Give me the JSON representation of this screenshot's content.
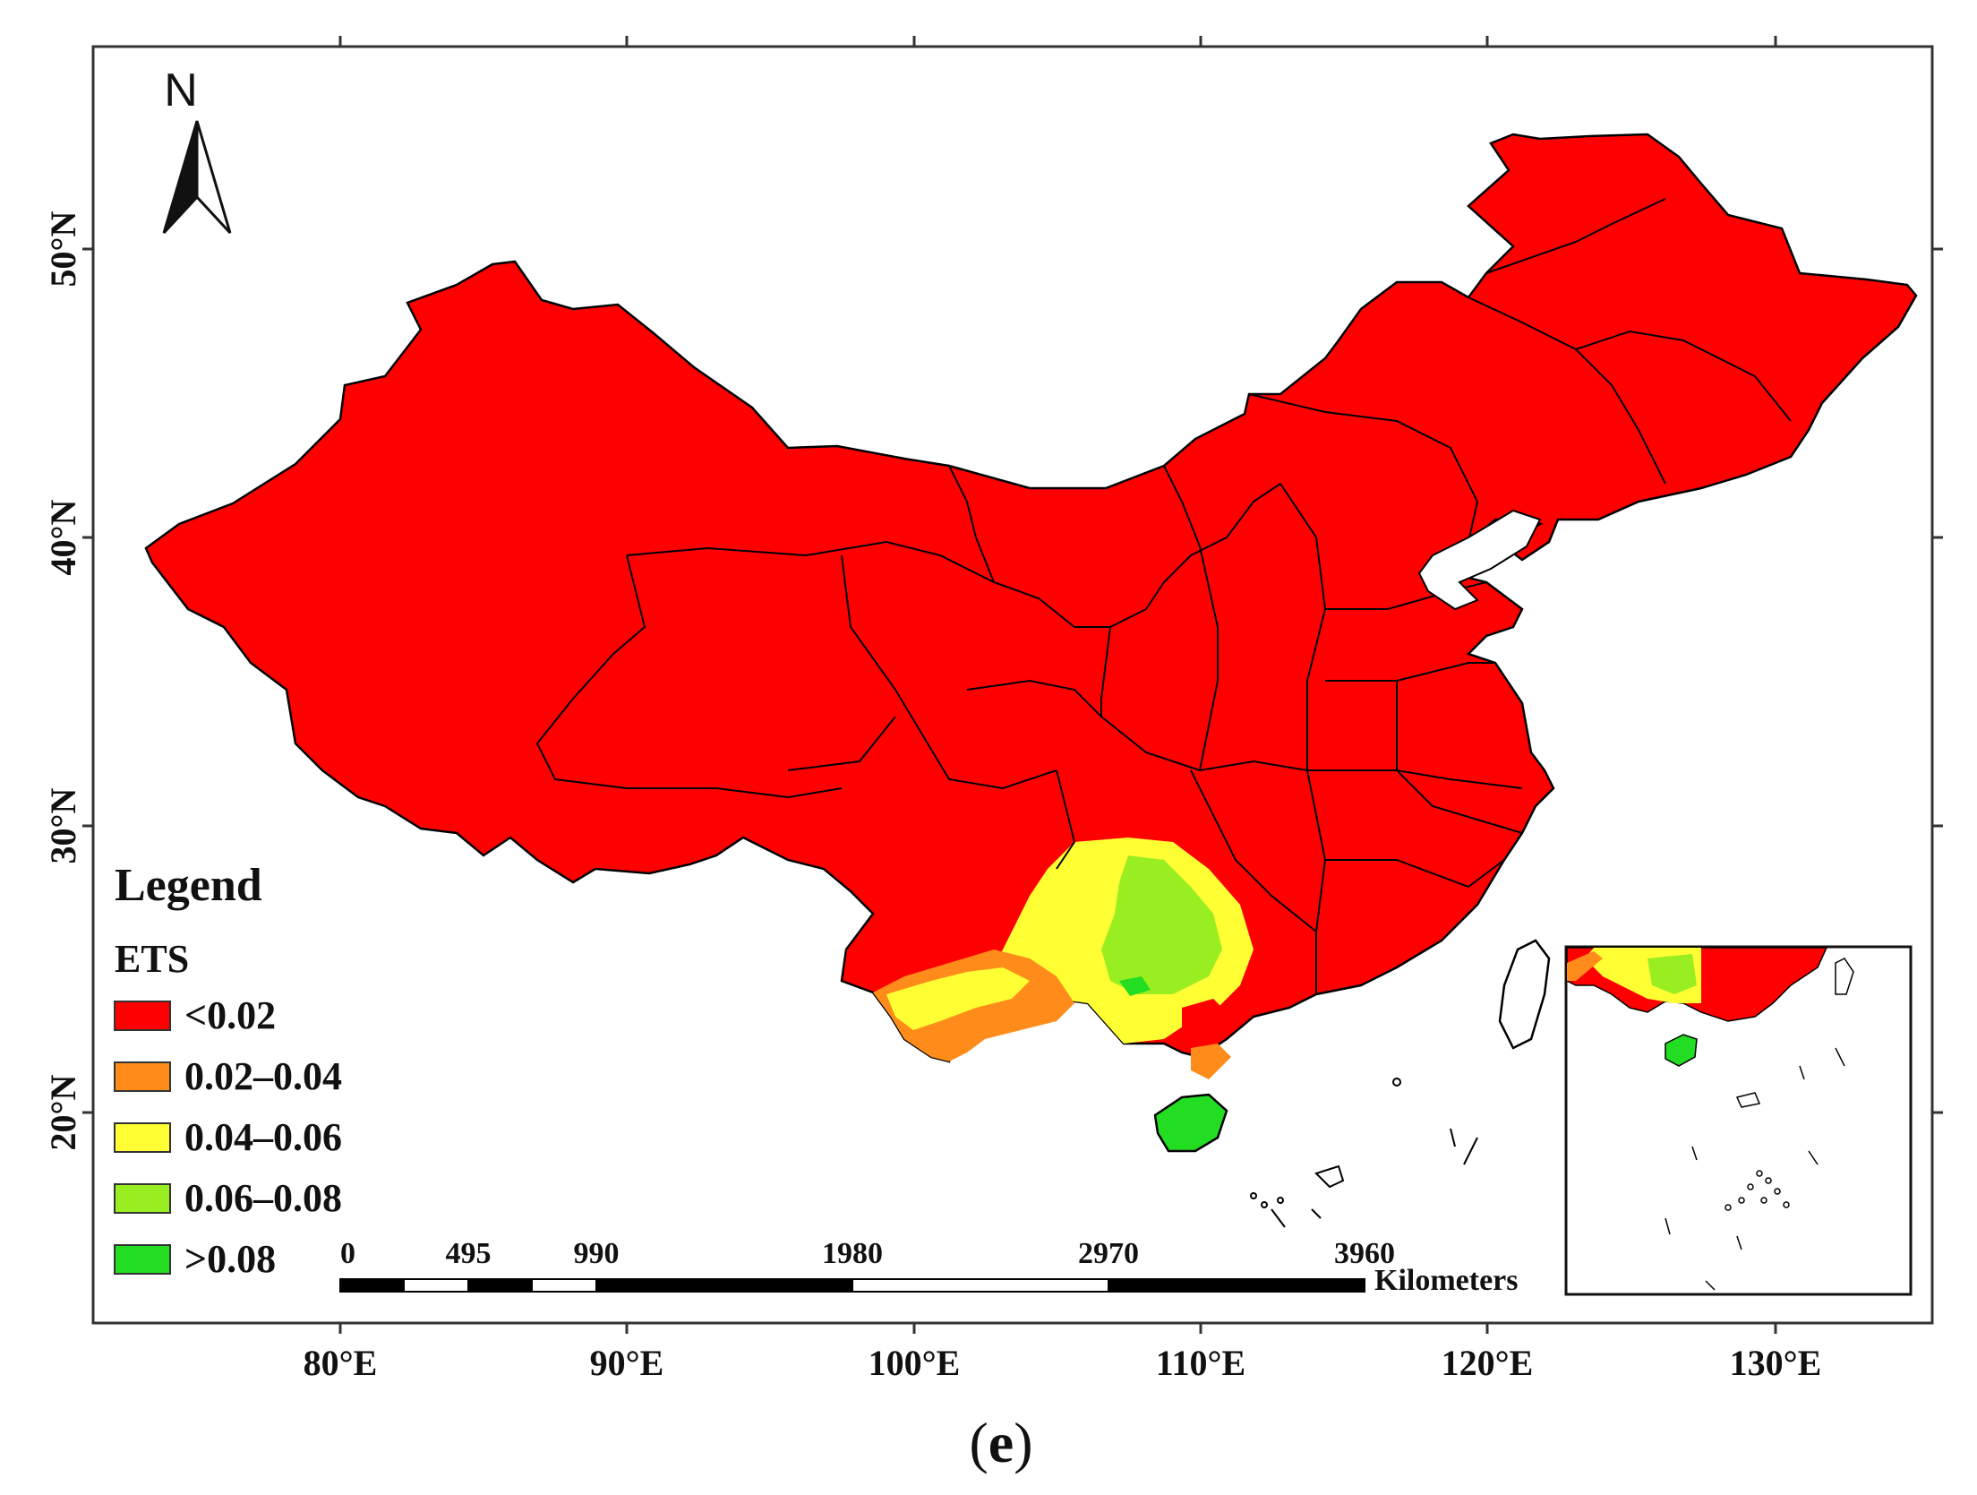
{
  "map": {
    "panel_letter": "e",
    "lon_ticks": [
      "80°E",
      "90°E",
      "100°E",
      "110°E",
      "120°E",
      "130°E"
    ],
    "lat_ticks": [
      "50°N",
      "40°N",
      "30°N",
      "20°N"
    ],
    "north_arrow_label": "N",
    "legend": {
      "title": "Legend",
      "variable": "ETS",
      "classes": [
        {
          "label": "<0.02",
          "color": "#ff0000"
        },
        {
          "label": "0.02–0.04",
          "color": "#ff8c1a"
        },
        {
          "label": "0.04–0.06",
          "color": "#ffff33"
        },
        {
          "label": "0.06–0.08",
          "color": "#99ee22"
        },
        {
          "label": ">0.08",
          "color": "#22dd22"
        }
      ]
    },
    "scale_bar": {
      "labels": [
        "0",
        "495",
        "990",
        "1980",
        "2970",
        "3960"
      ],
      "unit": "Kilometers"
    },
    "colors": {
      "boundary": "#000000",
      "frame": "#333333"
    }
  }
}
